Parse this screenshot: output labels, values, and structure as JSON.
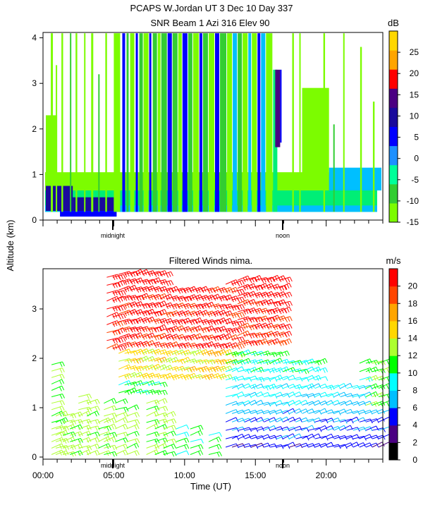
{
  "header": {
    "title_line1": "PCAPS W.Jordan UT   3 Dec 10 Day 337",
    "title_line2": "SNR Beam 1 Azi 316 Elev 90"
  },
  "ylabel": "Altitude (km)",
  "xlabel": "Time (UT)",
  "chart_data": [
    {
      "type": "heatmap",
      "title": "SNR Beam 1 Azi 316 Elev 90",
      "ylabel": "Altitude (km)",
      "ylim": [
        0,
        4.1
      ],
      "xlim": [
        0,
        24
      ],
      "yticks": [
        "0",
        "1",
        "2",
        "3",
        "4"
      ],
      "x_marks": [
        "midnight",
        "noon"
      ],
      "colorbar": {
        "unit": "dB",
        "ticks": [
          "-15",
          "-10",
          "-5",
          "0",
          "5",
          "10",
          "15",
          "20",
          "25"
        ],
        "range": [
          -15,
          30
        ],
        "colors": [
          "#7cfc00",
          "#32cd32",
          "#00ff99",
          "#1e90ff",
          "#0000ff",
          "#1a0a9c",
          "#4b0082",
          "#ff0000",
          "#ffa500",
          "#ffd700"
        ]
      },
      "colors": {
        "lime": "#7cfc00",
        "green": "#32cd32",
        "spring": "#00ee76",
        "cyan": "#00bfff",
        "blue": "#0000ff",
        "navy": "#1a0a9c",
        "indigo": "#4b0082"
      }
    },
    {
      "type": "scatter",
      "title": "Filtered Winds nima.",
      "ylabel": "Altitude (km)",
      "xlabel": "Time (UT)",
      "ylim": [
        0,
        3.9
      ],
      "xlim": [
        0,
        24
      ],
      "yticks": [
        "0",
        "1",
        "2",
        "3"
      ],
      "xticks": [
        "00:00",
        "05:00",
        "10:00",
        "15:00",
        "20:00"
      ],
      "x_marks": [
        "midnight",
        "noon"
      ],
      "colorbar": {
        "unit": "m/s",
        "ticks": [
          "0",
          "2",
          "4",
          "6",
          "8",
          "10",
          "12",
          "14",
          "16",
          "18",
          "20"
        ],
        "range": [
          0,
          22
        ],
        "colors": [
          "#000000",
          "#4b0082",
          "#0000ff",
          "#00bfff",
          "#00ffff",
          "#00ff00",
          "#adff2f",
          "#ffd700",
          "#ffa500",
          "#ff4500",
          "#ff0000"
        ]
      }
    }
  ]
}
